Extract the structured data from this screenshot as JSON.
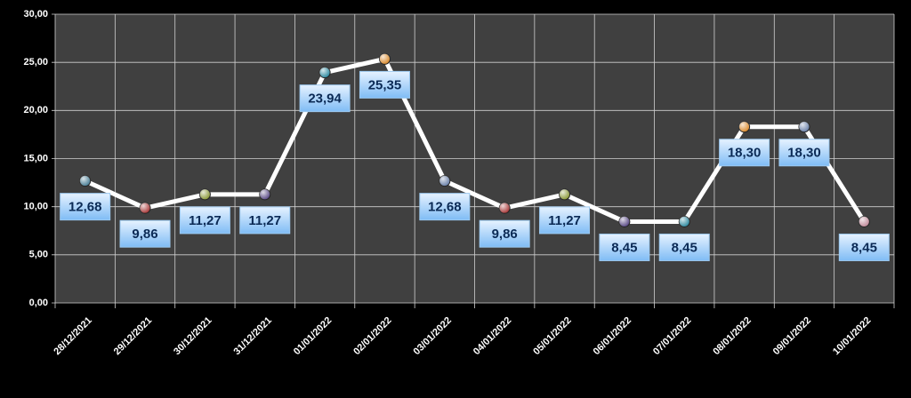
{
  "chart_data": {
    "type": "line",
    "categories": [
      "28/12/2021",
      "29/12/2021",
      "30/12/2021",
      "31/12/2021",
      "01/01/2022",
      "02/01/2022",
      "03/01/2022",
      "04/01/2022",
      "05/01/2022",
      "06/01/2022",
      "07/01/2022",
      "08/01/2022",
      "09/01/2022",
      "10/01/2022"
    ],
    "values": [
      12.68,
      9.86,
      11.27,
      11.27,
      23.94,
      25.35,
      12.68,
      9.86,
      11.27,
      8.45,
      8.45,
      18.3,
      18.3,
      8.45
    ],
    "value_labels": [
      "12,68",
      "9,86",
      "11,27",
      "11,27",
      "23,94",
      "25,35",
      "12,68",
      "9,86",
      "11,27",
      "8,45",
      "8,45",
      "18,30",
      "18,30",
      "8,45"
    ],
    "color": "#ffffff",
    "marker_colors": [
      "#4a7f96",
      "#a83a3a",
      "#8c9a3a",
      "#5a4a86",
      "#2f8aa0",
      "#d98a2e",
      "#6a80a8",
      "#a83a3a",
      "#8c9a3a",
      "#5a4a86",
      "#2f8aa0",
      "#d98a2e",
      "#6a80a8",
      "#c08a9a"
    ],
    "ylim": [
      0,
      30
    ],
    "yticks": [
      {
        "value": 0,
        "label": "0,00"
      },
      {
        "value": 5,
        "label": "5,00"
      },
      {
        "value": 10,
        "label": "10,00"
      },
      {
        "value": 15,
        "label": "15,00"
      },
      {
        "value": 20,
        "label": "20,00"
      },
      {
        "value": 25,
        "label": "25,00"
      },
      {
        "value": 30,
        "label": "30,00"
      }
    ],
    "grid": true
  }
}
